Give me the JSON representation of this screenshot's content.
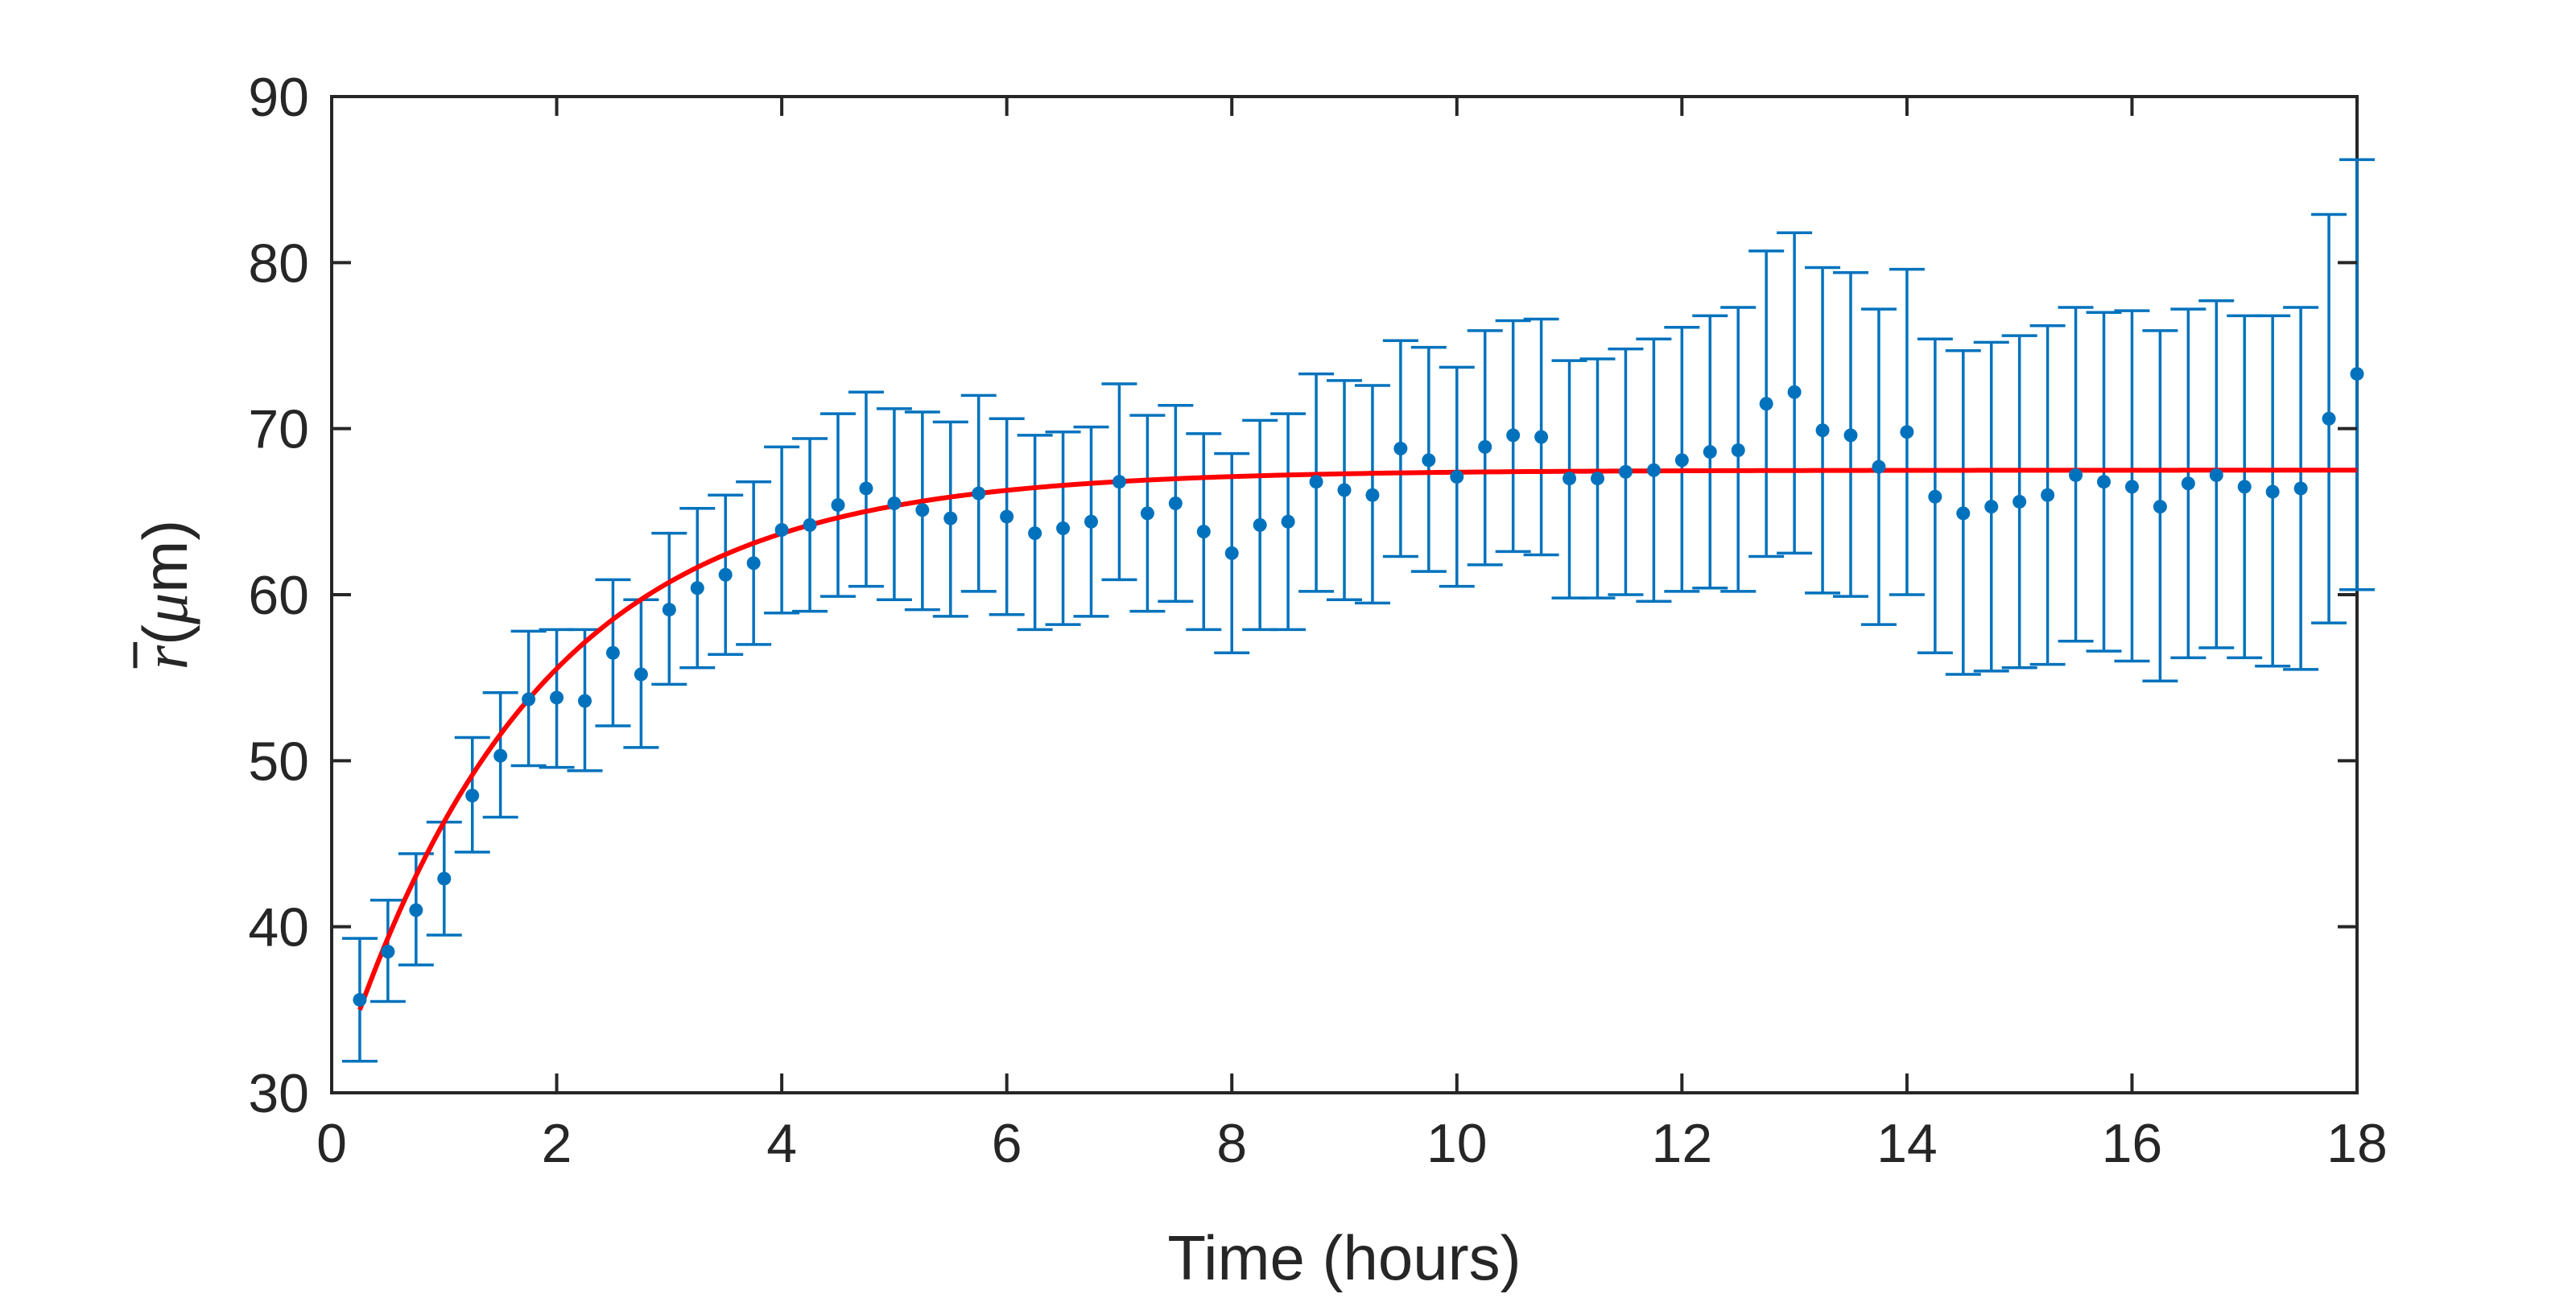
{
  "chart_data": {
    "type": "scatter",
    "xlabel": "Time (hours)",
    "ylabel": {
      "symbol": "r",
      "unit_open": "(",
      "unit_mu": "μ",
      "unit_rest": "m)"
    },
    "xlim": [
      0,
      18
    ],
    "ylim": [
      30,
      90
    ],
    "xticks": [
      "0",
      "2",
      "4",
      "6",
      "8",
      "10",
      "12",
      "14",
      "16",
      "18"
    ],
    "yticks": [
      "30",
      "40",
      "50",
      "60",
      "70",
      "80",
      "90"
    ],
    "grid": false,
    "colors": {
      "points": "#0072BD",
      "fit": "#FF0000",
      "axes": "#262626"
    },
    "series": [
      {
        "kind": "points-with-errorbars",
        "x": [
          0.25,
          0.5,
          0.75,
          1,
          1.25,
          1.5,
          1.75,
          2,
          2.25,
          2.5,
          2.75,
          3,
          3.25,
          3.5,
          3.75,
          4,
          4.25,
          4.5,
          4.75,
          5,
          5.25,
          5.5,
          5.75,
          6,
          6.25,
          6.5,
          6.75,
          7,
          7.25,
          7.5,
          7.75,
          8,
          8.25,
          8.5,
          8.75,
          9,
          9.25,
          9.5,
          9.75,
          10,
          10.25,
          10.5,
          10.75,
          11,
          11.25,
          11.5,
          11.75,
          12,
          12.25,
          12.5,
          12.75,
          13,
          13.25,
          13.5,
          13.75,
          14,
          14.25,
          14.5,
          14.75,
          15,
          15.25,
          15.5,
          15.75,
          16,
          16.25,
          16.5,
          16.75,
          17,
          17.25,
          17.5,
          17.75,
          18
        ],
        "y": [
          35.6,
          38.5,
          41.0,
          42.9,
          47.9,
          50.3,
          53.7,
          53.8,
          53.6,
          56.5,
          55.2,
          59.1,
          60.4,
          61.2,
          61.9,
          63.9,
          64.2,
          65.4,
          66.4,
          65.5,
          65.1,
          64.6,
          66.1,
          64.7,
          63.7,
          64.0,
          64.4,
          66.8,
          64.9,
          65.5,
          63.8,
          62.5,
          64.2,
          64.4,
          66.8,
          66.3,
          66.0,
          68.8,
          68.1,
          67.1,
          68.9,
          69.6,
          69.5,
          67.0,
          67.0,
          67.4,
          67.5,
          68.1,
          68.6,
          68.7,
          71.5,
          72.2,
          69.9,
          69.6,
          67.7,
          69.8,
          65.9,
          64.9,
          65.3,
          65.6,
          66.0,
          67.2,
          66.8,
          66.5,
          65.3,
          66.7,
          67.2,
          66.5,
          66.2,
          66.4,
          70.6,
          73.3
        ],
        "yerr_low": [
          31.9,
          35.5,
          37.7,
          39.5,
          44.5,
          46.6,
          49.7,
          49.6,
          49.4,
          52.1,
          50.8,
          54.6,
          55.6,
          56.4,
          57.0,
          58.9,
          59.0,
          59.9,
          60.5,
          59.7,
          59.1,
          58.7,
          60.2,
          58.8,
          57.9,
          58.2,
          58.7,
          60.9,
          59.0,
          59.6,
          57.9,
          56.5,
          57.9,
          57.9,
          60.2,
          59.7,
          59.5,
          62.3,
          61.4,
          60.5,
          61.8,
          62.6,
          62.4,
          59.8,
          59.8,
          60.0,
          59.6,
          60.2,
          60.4,
          60.2,
          62.3,
          62.5,
          60.1,
          59.9,
          58.2,
          60.0,
          56.5,
          55.2,
          55.4,
          55.6,
          55.8,
          57.2,
          56.6,
          56.0,
          54.8,
          56.2,
          56.8,
          56.2,
          55.7,
          55.5,
          58.3,
          60.3
        ],
        "yerr_high": [
          39.3,
          41.6,
          44.4,
          46.3,
          51.4,
          54.1,
          57.8,
          57.9,
          57.9,
          60.9,
          59.7,
          63.7,
          65.2,
          66.0,
          66.8,
          68.9,
          69.4,
          70.9,
          72.2,
          71.2,
          71.0,
          70.4,
          72.0,
          70.6,
          69.6,
          69.8,
          70.1,
          72.7,
          70.8,
          71.4,
          69.7,
          68.5,
          70.5,
          70.9,
          73.3,
          72.9,
          72.6,
          75.3,
          74.9,
          73.7,
          75.9,
          76.5,
          76.6,
          74.1,
          74.2,
          74.8,
          75.4,
          76.1,
          76.8,
          77.3,
          80.7,
          81.8,
          79.7,
          79.4,
          77.2,
          79.6,
          75.4,
          74.7,
          75.2,
          75.6,
          76.2,
          77.3,
          77.0,
          77.1,
          75.9,
          77.2,
          77.7,
          76.8,
          76.8,
          77.3,
          82.9,
          86.2
        ]
      },
      {
        "kind": "fit-curve",
        "model": "exponential-saturation",
        "x_range": [
          0.25,
          18
        ],
        "r_inf": 67.5,
        "r0": 35.0,
        "tau_hours": 1.75
      }
    ]
  }
}
